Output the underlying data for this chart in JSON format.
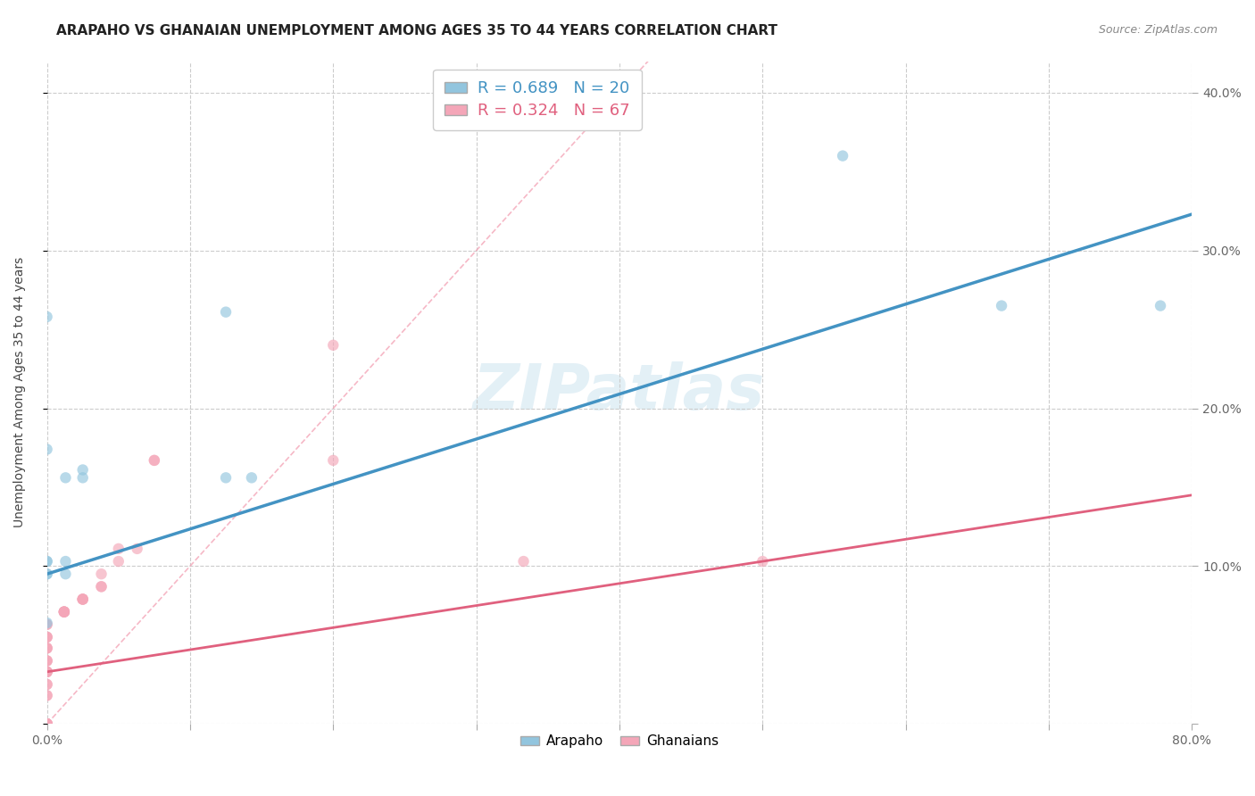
{
  "title": "ARAPAHO VS GHANAIAN UNEMPLOYMENT AMONG AGES 35 TO 44 YEARS CORRELATION CHART",
  "source": "Source: ZipAtlas.com",
  "ylabel": "Unemployment Among Ages 35 to 44 years",
  "xlim": [
    0.0,
    0.8
  ],
  "ylim": [
    0.0,
    0.42
  ],
  "xticks": [
    0.0,
    0.1,
    0.2,
    0.3,
    0.4,
    0.5,
    0.6,
    0.7,
    0.8
  ],
  "yticks": [
    0.0,
    0.1,
    0.2,
    0.3,
    0.4
  ],
  "xtick_labels": [
    "0.0%",
    "",
    "",
    "",
    "",
    "",
    "",
    "",
    "80.0%"
  ],
  "ytick_labels_right": [
    "",
    "10.0%",
    "20.0%",
    "30.0%",
    "40.0%"
  ],
  "arapaho_color": "#92c5de",
  "ghanaian_color": "#f4a6b8",
  "arapaho_line_color": "#4393c3",
  "ghanaian_line_color": "#e0607e",
  "diagonal_color": "#f4a6b8",
  "watermark": "ZIPatlas",
  "legend_R_arapaho": "R = 0.689",
  "legend_N_arapaho": "N = 20",
  "legend_R_ghanaian": "R = 0.324",
  "legend_N_ghanaian": "N = 67",
  "arapaho_scatter_x": [
    0.0,
    0.0,
    0.0,
    0.0,
    0.0,
    0.0,
    0.0,
    0.013,
    0.013,
    0.013,
    0.025,
    0.025,
    0.125,
    0.125,
    0.143,
    0.556,
    0.667,
    0.778
  ],
  "arapaho_scatter_y": [
    0.095,
    0.095,
    0.103,
    0.103,
    0.174,
    0.258,
    0.064,
    0.095,
    0.103,
    0.156,
    0.156,
    0.161,
    0.156,
    0.261,
    0.156,
    0.36,
    0.265,
    0.265
  ],
  "ghanaian_scatter_x": [
    0.0,
    0.0,
    0.0,
    0.0,
    0.0,
    0.0,
    0.0,
    0.0,
    0.0,
    0.0,
    0.0,
    0.0,
    0.0,
    0.0,
    0.0,
    0.0,
    0.0,
    0.0,
    0.0,
    0.0,
    0.0,
    0.0,
    0.0,
    0.0,
    0.0,
    0.0,
    0.0,
    0.0,
    0.0,
    0.0,
    0.012,
    0.012,
    0.012,
    0.012,
    0.012,
    0.025,
    0.025,
    0.025,
    0.025,
    0.038,
    0.038,
    0.038,
    0.05,
    0.05,
    0.063,
    0.075,
    0.075,
    0.2,
    0.2,
    0.333,
    0.5
  ],
  "ghanaian_scatter_y": [
    0.0,
    0.0,
    0.0,
    0.0,
    0.0,
    0.0,
    0.0,
    0.0,
    0.0,
    0.0,
    0.0,
    0.018,
    0.018,
    0.025,
    0.025,
    0.033,
    0.033,
    0.033,
    0.033,
    0.04,
    0.04,
    0.04,
    0.048,
    0.048,
    0.048,
    0.055,
    0.055,
    0.055,
    0.063,
    0.063,
    0.071,
    0.071,
    0.071,
    0.071,
    0.071,
    0.079,
    0.079,
    0.079,
    0.079,
    0.087,
    0.087,
    0.095,
    0.103,
    0.111,
    0.111,
    0.167,
    0.167,
    0.24,
    0.167,
    0.103,
    0.103
  ],
  "arapaho_reg_intercept": 0.095,
  "arapaho_reg_slope": 0.285,
  "ghanaian_reg_intercept": 0.033,
  "ghanaian_reg_slope": 0.14,
  "title_fontsize": 11,
  "axis_label_fontsize": 10,
  "tick_fontsize": 10,
  "scatter_size": 80,
  "scatter_alpha": 0.65,
  "background_color": "#ffffff",
  "grid_color": "#cccccc",
  "grid_linestyle": "--"
}
